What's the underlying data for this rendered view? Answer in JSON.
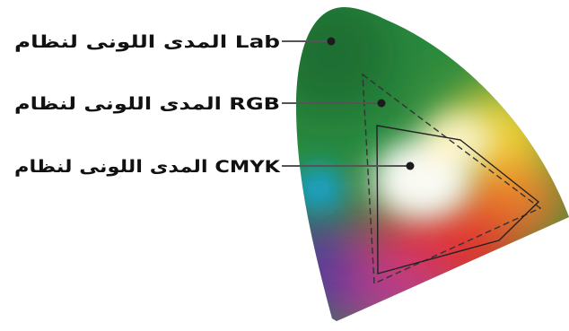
{
  "labels": {
    "lab": {
      "text": "المدى اللونى لنظام  Lab"
    },
    "rgb": {
      "text": "المدى اللونى لنظام  RGB"
    },
    "cmyk": {
      "text": "المدى اللونى لنظام CMYK"
    }
  },
  "colors": {
    "green": "#2a8a3e",
    "dark_green": "#1d6e31",
    "yellow": "#f3d436",
    "orange": "#ec7a2a",
    "red": "#e2322f",
    "magenta": "#b73c8b",
    "purple": "#5b3b9b",
    "cyan": "#18a6de",
    "white": "#fafaf4",
    "marker": "#1c1c1c",
    "leader": "#555555"
  }
}
